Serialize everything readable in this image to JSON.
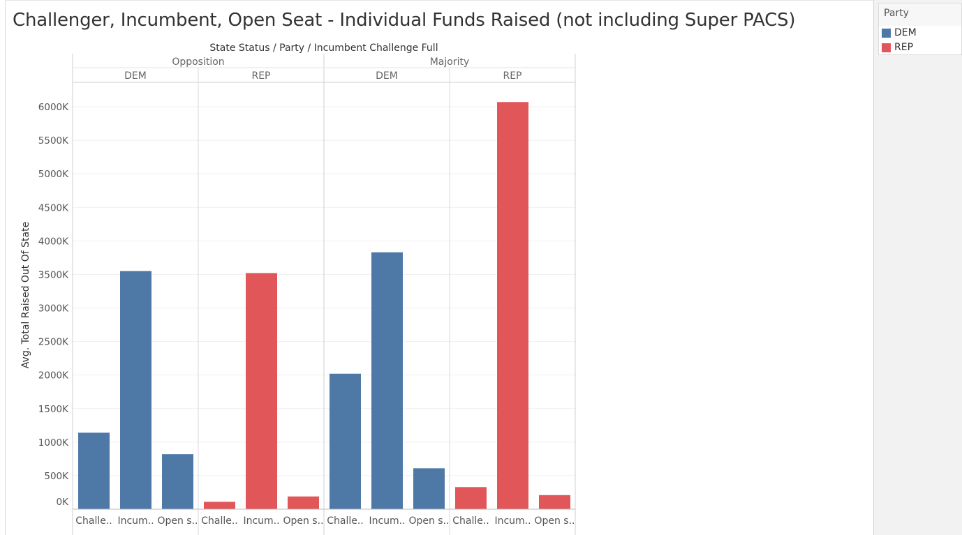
{
  "title": "Challenger, Incumbent, Open Seat - Individual Funds Raised (not including Super PACS)",
  "colors": {
    "DEM": "#4e79a7",
    "REP": "#e15759"
  },
  "legend": {
    "title": "Party",
    "items": [
      {
        "label": "DEM",
        "color": "#4e79a7"
      },
      {
        "label": "REP",
        "color": "#e15759"
      }
    ]
  },
  "chart_data": {
    "type": "bar",
    "header": "State Status / Party / Incumbent Challenge Full",
    "ylabel": "Avg. Total Raised Out Of State",
    "ylim": [
      0,
      6300
    ],
    "yticks": [
      0,
      500,
      1000,
      1500,
      2000,
      2500,
      3000,
      3500,
      4000,
      4500,
      5000,
      5500,
      6000
    ],
    "ytick_labels": [
      "0K",
      "500K",
      "1000K",
      "1500K",
      "2000K",
      "2500K",
      "3000K",
      "3500K",
      "4000K",
      "4500K",
      "5000K",
      "5500K",
      "6000K"
    ],
    "y_unit": "K",
    "grid": true,
    "legend_position": "top-right",
    "groups": [
      {
        "status": "Opposition",
        "parties": [
          {
            "party": "DEM",
            "bars": [
              {
                "label": "Challe..",
                "value": 1140
              },
              {
                "label": "Incum..",
                "value": 3550
              },
              {
                "label": "Open s..",
                "value": 820
              }
            ]
          },
          {
            "party": "REP",
            "bars": [
              {
                "label": "Challe..",
                "value": 110
              },
              {
                "label": "Incum..",
                "value": 3520
              },
              {
                "label": "Open s..",
                "value": 190
              }
            ]
          }
        ]
      },
      {
        "status": "Majority",
        "parties": [
          {
            "party": "DEM",
            "bars": [
              {
                "label": "Challe..",
                "value": 2020
              },
              {
                "label": "Incum..",
                "value": 3830
              },
              {
                "label": "Open s..",
                "value": 610
              }
            ]
          },
          {
            "party": "REP",
            "bars": [
              {
                "label": "Challe..",
                "value": 330
              },
              {
                "label": "Incum..",
                "value": 6070
              },
              {
                "label": "Open s..",
                "value": 210
              }
            ]
          }
        ]
      }
    ]
  }
}
